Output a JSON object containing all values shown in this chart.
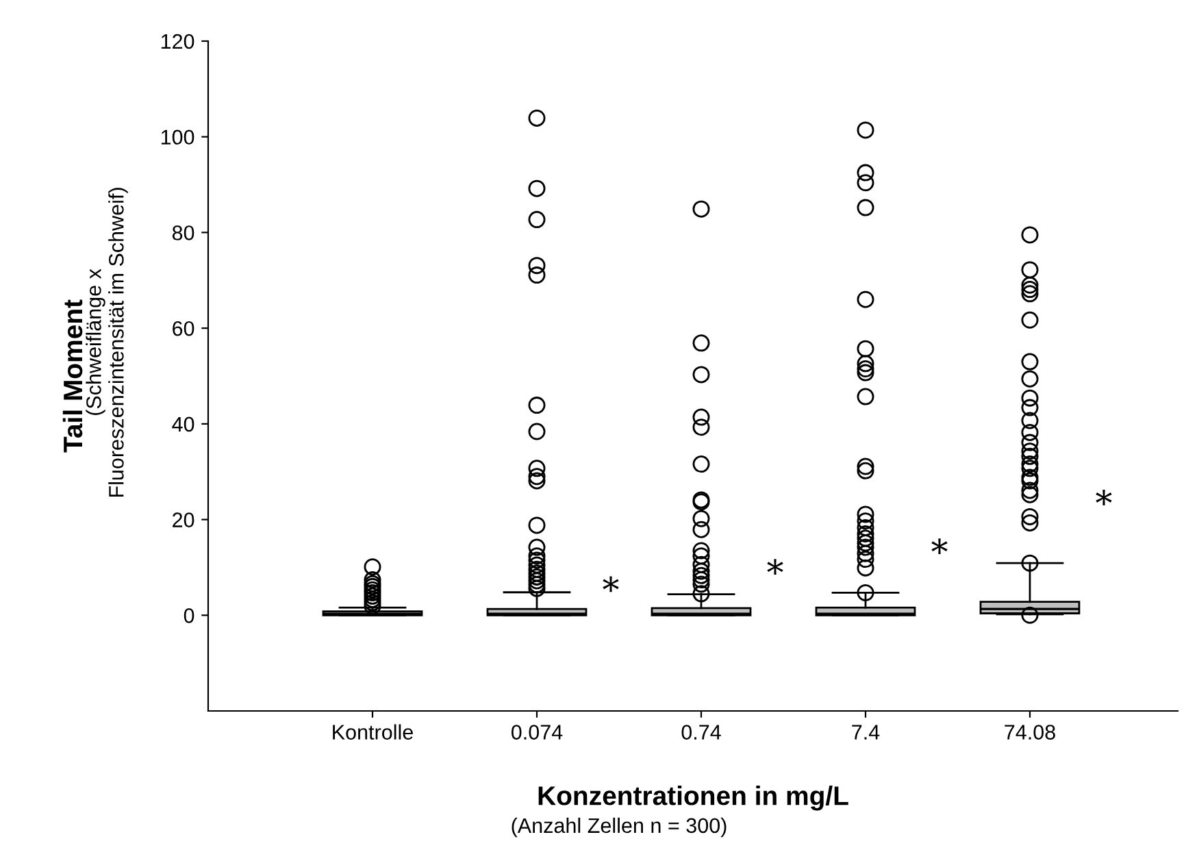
{
  "chart_data": {
    "type": "box",
    "xlabel": "Konzentrationen in mg/L",
    "ylabel": "Tail Moment",
    "annotations": [
      "(Schweiflänge x\nFluoreszenzintensität im Schweif)",
      "(Anzahl Zellen n = 300)",
      "*",
      "*",
      "*",
      "*"
    ],
    "categories": [
      "Kontrolle",
      "0.074",
      "0.74",
      "7.4",
      "74.08"
    ],
    "color": "#c0c0c0",
    "boxes": [
      {
        "low": 0,
        "q1": 0,
        "median": 0.3,
        "q3": 0.8,
        "high": 1.6,
        "outliers": [
          10.1,
          7.4,
          6.6,
          6.0,
          5.3,
          4.7,
          4.0,
          3.3,
          2.6,
          1.9
        ]
      },
      {
        "low": 0,
        "q1": 0,
        "median": 0.3,
        "q3": 1.3,
        "high": 4.8,
        "outliers": [
          103.9,
          89.2,
          82.7,
          73.1,
          71.1,
          43.9,
          38.4,
          30.7,
          29.0,
          28.1,
          18.8,
          14.2,
          12.4,
          11.5,
          10.5,
          9.6,
          8.8,
          8.0,
          7.2,
          6.4,
          5.6
        ]
      },
      {
        "low": 0,
        "q1": 0,
        "median": 0.3,
        "q3": 1.5,
        "high": 4.4,
        "outliers": [
          84.9,
          56.9,
          50.3,
          41.4,
          39.3,
          31.6,
          24.1,
          23.7,
          20.2,
          17.9,
          13.5,
          12.4,
          10.6,
          9.2,
          8.3,
          7.4,
          6.5,
          4.5
        ]
      },
      {
        "low": 0,
        "q1": 0,
        "median": 0.3,
        "q3": 1.6,
        "high": 4.7,
        "outliers": [
          101.4,
          92.5,
          90.4,
          85.2,
          66.0,
          55.7,
          52.6,
          51.5,
          50.7,
          45.7,
          31.1,
          30.2,
          21.1,
          19.7,
          18.3,
          17.0,
          16.1,
          15.1,
          14.2,
          12.9,
          11.7,
          9.9,
          4.7
        ]
      },
      {
        "low": 0.2,
        "q1": 0.4,
        "median": 1.3,
        "q3": 2.8,
        "high": 10.9,
        "outliers": [
          79.5,
          72.2,
          69.0,
          68.1,
          67.2,
          61.7,
          53.0,
          49.4,
          45.4,
          43.4,
          40.7,
          38.2,
          36.1,
          34.3,
          33.2,
          31.6,
          30.7,
          28.8,
          28.1,
          26.1,
          25.2,
          20.6,
          19.3,
          10.9,
          0.0
        ]
      }
    ],
    "ylim": [
      -20,
      120
    ],
    "yticks": [
      0,
      20,
      40,
      60,
      80,
      100,
      120
    ],
    "grid": false,
    "marker": "circle"
  }
}
